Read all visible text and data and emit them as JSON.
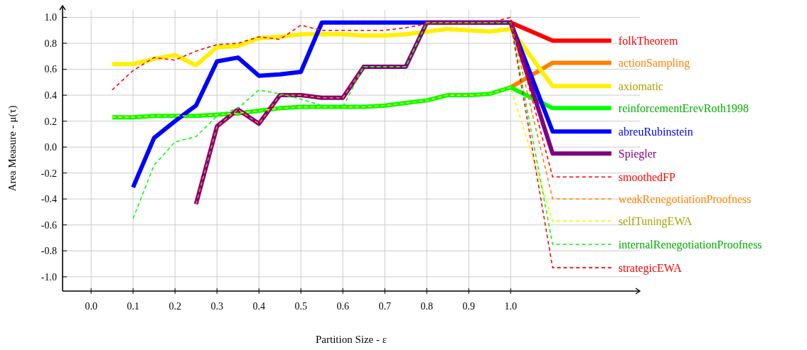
{
  "chart_data": {
    "type": "line",
    "xlabel": "Partition Size - ε",
    "ylabel": "Area Measure - μ(τ)",
    "xlim": [
      -0.068,
      1.308
    ],
    "ylim": [
      -1.11,
      1.09
    ],
    "xticks": [
      {
        "value": 0,
        "label": "0.0"
      },
      0.1,
      0.2,
      0.3,
      0.4,
      0.5,
      0.6,
      0.7,
      0.8,
      0.9,
      {
        "value": 1,
        "label": "1.0"
      }
    ],
    "yticks": [
      {
        "value": -1,
        "label": "-1.0"
      },
      -0.8,
      -0.6,
      -0.4,
      -0.2,
      {
        "value": 0,
        "label": "0.0"
      },
      0.2,
      0.4,
      0.6,
      0.8,
      {
        "value": 1,
        "label": "1.0"
      }
    ],
    "grid": true,
    "series": [
      {
        "name": "folkTheorem",
        "color": "#ff0000",
        "line_style": "solid",
        "x": [
          1.0,
          1.1,
          1.24
        ],
        "values": [
          0.96,
          0.82,
          0.82
        ]
      },
      {
        "name": "actionSampling",
        "color": "#ff8000",
        "line_style": "solid",
        "x": [
          1.0,
          1.1,
          1.24
        ],
        "values": [
          0.46,
          0.65,
          0.65
        ]
      },
      {
        "name": "axiomatic",
        "color": "#fff000",
        "line_style": "solid",
        "x": [
          0.05,
          0.1,
          0.15,
          0.2,
          0.25,
          0.3,
          0.35,
          0.4,
          0.45,
          0.5,
          0.55,
          0.6,
          0.65,
          0.7,
          0.75,
          0.8,
          0.85,
          0.9,
          0.95,
          1.0,
          1.1,
          1.24
        ],
        "values": [
          0.64,
          0.64,
          0.68,
          0.71,
          0.63,
          0.77,
          0.78,
          0.84,
          0.85,
          0.87,
          0.87,
          0.87,
          0.86,
          0.86,
          0.87,
          0.89,
          0.91,
          0.9,
          0.89,
          0.91,
          0.47,
          0.47
        ]
      },
      {
        "name": "reinforcementErevRoth1998",
        "color": "#00ff00",
        "line_style": "solid",
        "x": [
          0.05,
          0.1,
          0.15,
          0.2,
          0.25,
          0.3,
          0.35,
          0.4,
          0.45,
          0.5,
          0.55,
          0.6,
          0.65,
          0.7,
          0.75,
          0.8,
          0.85,
          0.9,
          0.95,
          1.0,
          1.1,
          1.24
        ],
        "values": [
          0.23,
          0.23,
          0.24,
          0.24,
          0.24,
          0.25,
          0.26,
          0.28,
          0.3,
          0.31,
          0.31,
          0.31,
          0.31,
          0.32,
          0.34,
          0.36,
          0.4,
          0.4,
          0.41,
          0.46,
          0.3,
          0.3
        ]
      },
      {
        "name": "abreuRubinstein",
        "color": "#0000ff",
        "line_style": "solid",
        "x": [
          0.1,
          0.15,
          0.2,
          0.25,
          0.3,
          0.35,
          0.4,
          0.45,
          0.5,
          0.55,
          0.6,
          0.65,
          0.7,
          0.75,
          0.8,
          0.85,
          0.9,
          0.95,
          1.0,
          1.1,
          1.24
        ],
        "values": [
          -0.31,
          0.07,
          0.2,
          0.32,
          0.66,
          0.69,
          0.55,
          0.56,
          0.58,
          0.96,
          0.96,
          0.96,
          0.96,
          0.96,
          0.96,
          0.96,
          0.96,
          0.96,
          0.96,
          0.12,
          0.12
        ]
      },
      {
        "name": "Spiegler",
        "color": "#800080",
        "line_style": "solid",
        "x": [
          0.25,
          0.3,
          0.35,
          0.4,
          0.45,
          0.5,
          0.55,
          0.6,
          0.65,
          0.7,
          0.75,
          0.8,
          0.85,
          0.9,
          0.95,
          1.0,
          1.1,
          1.24
        ],
        "values": [
          -0.44,
          0.16,
          0.29,
          0.18,
          0.4,
          0.4,
          0.38,
          0.38,
          0.62,
          0.62,
          0.62,
          0.96,
          0.96,
          0.96,
          0.96,
          0.96,
          -0.05,
          -0.05
        ]
      },
      {
        "name": "smoothedFP",
        "color": "#ff0000",
        "line_style": "dashed",
        "x": [
          0.05,
          0.1,
          0.15,
          0.2,
          0.25,
          0.3,
          0.35,
          0.4,
          0.45,
          0.5,
          0.55,
          0.6,
          0.65,
          0.7,
          0.75,
          0.8,
          0.85,
          0.9,
          0.95,
          1.0,
          1.1,
          1.24
        ],
        "values": [
          0.44,
          0.59,
          0.69,
          0.67,
          0.74,
          0.79,
          0.8,
          0.85,
          0.83,
          0.94,
          0.9,
          0.9,
          0.9,
          0.9,
          0.92,
          0.95,
          0.95,
          0.95,
          0.96,
          1.0,
          -0.23,
          -0.23
        ]
      },
      {
        "name": "weakRenegotiationProofness",
        "color": "#ff8000",
        "line_style": "dashed",
        "x": [
          0.25,
          0.3,
          0.35,
          0.4,
          0.45,
          0.5,
          0.55,
          0.6,
          0.65,
          0.7,
          0.75,
          0.8,
          0.85,
          0.9,
          0.95,
          1.0,
          1.1,
          1.24
        ],
        "values": [
          -0.44,
          0.16,
          0.29,
          0.18,
          0.4,
          0.4,
          0.38,
          0.38,
          0.62,
          0.62,
          0.62,
          0.96,
          0.96,
          0.96,
          0.96,
          0.96,
          -0.4,
          -0.4
        ]
      },
      {
        "name": "selfTuningEWA",
        "color": "#fff000",
        "line_style": "dashed",
        "x": [
          0.05,
          0.1,
          0.15,
          0.2,
          0.25,
          0.3,
          0.35,
          0.4,
          0.45,
          0.5,
          0.55,
          0.6,
          0.65,
          0.7,
          0.75,
          0.8,
          0.85,
          0.9,
          0.95,
          1.0,
          1.1,
          1.24
        ],
        "values": [
          0.23,
          0.23,
          0.24,
          0.24,
          0.24,
          0.25,
          0.26,
          0.28,
          0.3,
          0.31,
          0.31,
          0.31,
          0.31,
          0.32,
          0.34,
          0.36,
          0.4,
          0.4,
          0.41,
          0.46,
          -0.57,
          -0.57
        ]
      },
      {
        "name": "internalRenegotiationProofness",
        "color": "#00ff00",
        "line_style": "dashed",
        "x": [
          0.1,
          0.15,
          0.2,
          0.25,
          0.3,
          0.35,
          0.4,
          0.45,
          0.5,
          0.55,
          0.6,
          0.65,
          0.7,
          0.75,
          0.8,
          0.85,
          0.9,
          0.95,
          1.0,
          1.1,
          1.24
        ],
        "values": [
          -0.55,
          -0.14,
          0.04,
          0.08,
          0.24,
          0.3,
          0.44,
          0.41,
          0.37,
          0.32,
          0.31,
          0.62,
          0.62,
          0.62,
          0.96,
          0.96,
          0.96,
          0.96,
          0.96,
          -0.75,
          -0.75
        ]
      },
      {
        "name": "strategicEWA",
        "color": "#ff0000",
        "line_style": "dashed",
        "x": [
          1.0,
          1.1,
          1.24
        ],
        "values": [
          0.96,
          -0.93,
          -0.93
        ]
      }
    ]
  }
}
